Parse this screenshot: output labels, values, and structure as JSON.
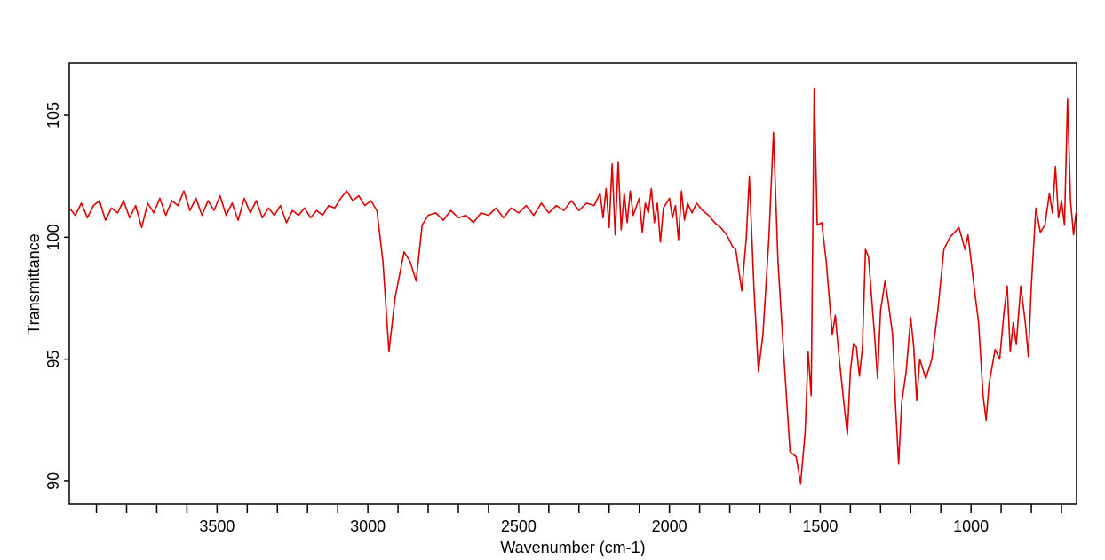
{
  "chart_data": {
    "type": "line",
    "xlabel": "Wavenumber (cm-1)",
    "ylabel": "Transmittance",
    "color": "#e00000",
    "xlim": [
      3990,
      650
    ],
    "ylim": [
      89.05,
      107.15
    ],
    "xticks": [
      3500,
      3000,
      2500,
      2000,
      1500,
      1000
    ],
    "xticks_minor": [
      3900,
      3800,
      3700,
      3600,
      3400,
      3300,
      3200,
      3100,
      2900,
      2800,
      2700,
      2600,
      2400,
      2300,
      2200,
      2100,
      1900,
      1800,
      1700,
      1600,
      1400,
      1300,
      1200,
      1100,
      900,
      800,
      700
    ],
    "yticks": [
      90,
      95,
      100,
      105
    ],
    "x": [
      3990,
      3970,
      3950,
      3930,
      3910,
      3890,
      3870,
      3850,
      3830,
      3810,
      3790,
      3770,
      3750,
      3730,
      3710,
      3690,
      3670,
      3650,
      3630,
      3610,
      3590,
      3570,
      3550,
      3530,
      3510,
      3490,
      3470,
      3450,
      3430,
      3410,
      3390,
      3370,
      3350,
      3330,
      3310,
      3290,
      3270,
      3250,
      3230,
      3210,
      3190,
      3170,
      3150,
      3130,
      3110,
      3090,
      3070,
      3050,
      3030,
      3010,
      2990,
      2970,
      2950,
      2930,
      2910,
      2880,
      2860,
      2840,
      2820,
      2800,
      2775,
      2750,
      2725,
      2700,
      2675,
      2650,
      2625,
      2600,
      2575,
      2550,
      2525,
      2500,
      2475,
      2450,
      2425,
      2400,
      2375,
      2350,
      2325,
      2300,
      2275,
      2250,
      2230,
      2220,
      2210,
      2200,
      2190,
      2180,
      2170,
      2160,
      2150,
      2140,
      2130,
      2120,
      2100,
      2090,
      2080,
      2070,
      2060,
      2050,
      2040,
      2030,
      2020,
      2000,
      1990,
      1980,
      1970,
      1960,
      1950,
      1940,
      1925,
      1910,
      1890,
      1870,
      1850,
      1830,
      1810,
      1790,
      1780,
      1760,
      1745,
      1735,
      1720,
      1705,
      1690,
      1670,
      1655,
      1640,
      1620,
      1600,
      1580,
      1565,
      1550,
      1540,
      1530,
      1520,
      1510,
      1495,
      1480,
      1460,
      1450,
      1440,
      1420,
      1410,
      1400,
      1390,
      1380,
      1370,
      1360,
      1350,
      1340,
      1320,
      1310,
      1300,
      1285,
      1275,
      1260,
      1250,
      1240,
      1230,
      1215,
      1200,
      1190,
      1180,
      1170,
      1150,
      1130,
      1110,
      1090,
      1070,
      1040,
      1020,
      1010,
      990,
      975,
      960,
      950,
      940,
      920,
      905,
      890,
      880,
      870,
      860,
      850,
      835,
      820,
      810,
      800,
      785,
      770,
      755,
      740,
      730,
      720,
      710,
      700,
      690,
      680,
      670,
      660,
      652
    ],
    "values": [
      101.2,
      100.9,
      101.4,
      100.8,
      101.3,
      101.5,
      100.7,
      101.2,
      101.0,
      101.5,
      100.8,
      101.3,
      100.4,
      101.4,
      101.0,
      101.6,
      100.9,
      101.5,
      101.3,
      101.9,
      101.1,
      101.6,
      100.9,
      101.5,
      101.1,
      101.7,
      100.9,
      101.4,
      100.7,
      101.6,
      101.0,
      101.5,
      100.8,
      101.2,
      100.9,
      101.3,
      100.6,
      101.1,
      100.9,
      101.2,
      100.8,
      101.1,
      100.9,
      101.3,
      101.2,
      101.6,
      101.9,
      101.5,
      101.7,
      101.3,
      101.5,
      101.1,
      99.0,
      95.3,
      97.5,
      99.4,
      99.0,
      98.2,
      100.5,
      100.9,
      101.0,
      100.7,
      101.1,
      100.8,
      100.9,
      100.6,
      101.0,
      100.9,
      101.2,
      100.8,
      101.2,
      101.0,
      101.3,
      100.9,
      101.4,
      101.0,
      101.3,
      101.1,
      101.5,
      101.1,
      101.4,
      101.3,
      101.8,
      100.8,
      102.0,
      100.4,
      103.0,
      100.1,
      103.1,
      100.3,
      101.8,
      100.6,
      101.9,
      100.9,
      101.6,
      100.2,
      101.4,
      101.0,
      102.0,
      100.6,
      101.4,
      99.8,
      101.2,
      101.6,
      100.8,
      101.3,
      99.9,
      101.9,
      100.7,
      101.4,
      101.0,
      101.4,
      101.1,
      100.9,
      100.6,
      100.4,
      100.1,
      99.6,
      99.5,
      97.8,
      100.0,
      102.5,
      98.0,
      94.5,
      96.0,
      100.0,
      104.3,
      99.0,
      95.0,
      91.2,
      91.0,
      89.9,
      92.0,
      95.3,
      93.5,
      106.1,
      100.5,
      100.6,
      99.0,
      96.0,
      96.8,
      95.4,
      93.0,
      91.9,
      94.5,
      95.6,
      95.5,
      94.3,
      95.5,
      99.5,
      99.2,
      96.0,
      94.2,
      97.0,
      98.2,
      97.4,
      96.0,
      93.0,
      90.7,
      93.2,
      94.5,
      96.7,
      95.5,
      93.3,
      95.0,
      94.2,
      95.0,
      97.0,
      99.5,
      100.0,
      100.4,
      99.5,
      100.1,
      98.0,
      96.5,
      93.5,
      92.5,
      94.0,
      95.4,
      95.0,
      97.0,
      98.0,
      95.3,
      96.5,
      95.6,
      98.0,
      96.5,
      95.1,
      98.0,
      101.2,
      100.2,
      100.5,
      101.8,
      101.0,
      102.9,
      100.8,
      101.5,
      100.5,
      105.7,
      101.5,
      100.1,
      101.0
    ]
  }
}
